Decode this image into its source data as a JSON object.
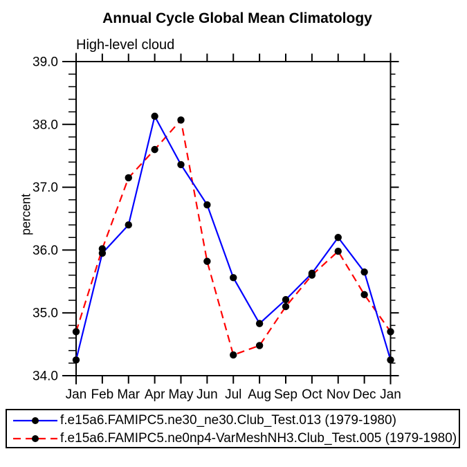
{
  "title": "Annual Cycle Global Mean Climatology",
  "subtitle": "High-level cloud",
  "chart_data": {
    "type": "line",
    "title": "Annual Cycle Global Mean Climatology",
    "subtitle": "High-level cloud",
    "xlabel": "",
    "ylabel": "percent",
    "categories": [
      "Jan",
      "Feb",
      "Mar",
      "Apr",
      "May",
      "Jun",
      "Jul",
      "Aug",
      "Sep",
      "Oct",
      "Nov",
      "Dec",
      "Jan"
    ],
    "ylim": [
      34.0,
      39.0
    ],
    "ytick_major": [
      39.0,
      38.0,
      37.0,
      36.0,
      35.0,
      34.0
    ],
    "ytick_labels": [
      "39.0",
      "38.0",
      "37.0",
      "36.0",
      "35.0",
      "34.0"
    ],
    "minor_tick_step": 0.2,
    "grid": false,
    "legend_position": "bottom",
    "marker_color": "#000000",
    "axis_color": "#000000",
    "series": [
      {
        "name": "f.e15a6.FAMIPC5.ne30_ne30.Club_Test.013 (1979-1980)",
        "color": "#0000ff",
        "line_style": "solid",
        "values": [
          34.25,
          35.95,
          36.4,
          38.13,
          37.36,
          36.72,
          35.56,
          34.83,
          35.21,
          35.63,
          36.2,
          35.65,
          34.25
        ]
      },
      {
        "name": "f.e15a6.FAMIPC5.ne0np4-VarMeshNH3.Club_Test.005 (1979-1980)",
        "color": "#ff0000",
        "line_style": "dashed",
        "values": [
          34.7,
          36.02,
          37.15,
          37.6,
          38.07,
          35.82,
          34.33,
          34.48,
          35.1,
          35.6,
          35.98,
          35.29,
          34.7
        ]
      }
    ]
  }
}
